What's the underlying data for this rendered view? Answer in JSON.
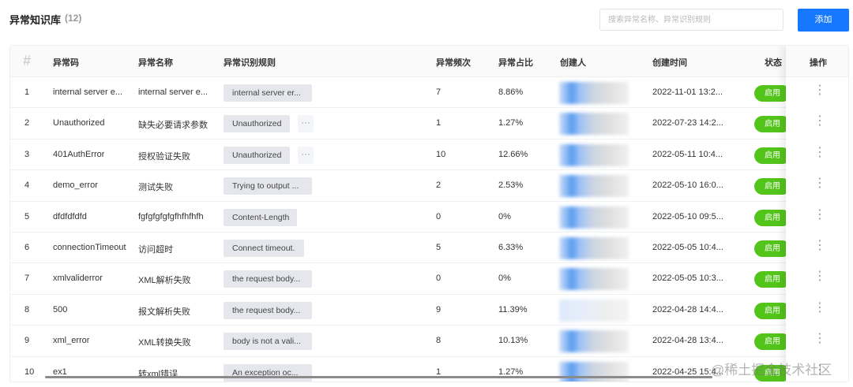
{
  "header": {
    "title": "异常知识库",
    "count": "(12)",
    "search_placeholder": "搜索异常名称、异常识别规则",
    "add_label": "添加"
  },
  "table": {
    "columns": {
      "index": "#",
      "code": "异常码",
      "name": "异常名称",
      "rule": "异常识别规则",
      "freq": "异常频次",
      "ratio": "异常占比",
      "creator": "创建人",
      "created": "创建时间",
      "status": "状态",
      "actions": "操作"
    },
    "rows": [
      {
        "index": "1",
        "code": "internal server e...",
        "name": "internal server e...",
        "rule": "internal server er...",
        "rule_more": false,
        "freq": "7",
        "ratio": "8.86%",
        "created": "2022-11-01 13:2...",
        "status": "启用"
      },
      {
        "index": "2",
        "code": "Unauthorized",
        "name": "缺失必要请求参数",
        "rule": "Unauthorized",
        "rule_more": true,
        "freq": "1",
        "ratio": "1.27%",
        "created": "2022-07-23 14:2...",
        "status": "启用"
      },
      {
        "index": "3",
        "code": "401AuthError",
        "name": "授权验证失败",
        "rule": "Unauthorized",
        "rule_more": true,
        "freq": "10",
        "ratio": "12.66%",
        "created": "2022-05-11 10:4...",
        "status": "启用"
      },
      {
        "index": "4",
        "code": "demo_error",
        "name": "测试失败",
        "rule": "Trying to output ...",
        "rule_more": false,
        "freq": "2",
        "ratio": "2.53%",
        "created": "2022-05-10 16:0...",
        "status": "启用"
      },
      {
        "index": "5",
        "code": "dfdfdfdfd",
        "name": "fgfgfgfgfgfhfhfhfh",
        "rule": "Content-Length",
        "rule_more": false,
        "freq": "0",
        "ratio": "0%",
        "created": "2022-05-10 09:5...",
        "status": "启用"
      },
      {
        "index": "6",
        "code": "connectionTimeout",
        "name": "访问超时",
        "rule": "Connect timeout.",
        "rule_more": false,
        "freq": "5",
        "ratio": "6.33%",
        "created": "2022-05-05 10:4...",
        "status": "启用"
      },
      {
        "index": "7",
        "code": "xmlvaliderror",
        "name": "XML解析失败",
        "rule": "the request body...",
        "rule_more": false,
        "freq": "0",
        "ratio": "0%",
        "created": "2022-05-05 10:3...",
        "status": "启用"
      },
      {
        "index": "8",
        "code": "500",
        "name": "报文解析失败",
        "rule": "the request body...",
        "rule_more": false,
        "freq": "9",
        "ratio": "11.39%",
        "created": "2022-04-28 14:4...",
        "status": "启用"
      },
      {
        "index": "9",
        "code": "xml_error",
        "name": "XML转换失败",
        "rule": "body is not a vali...",
        "rule_more": false,
        "freq": "8",
        "ratio": "10.13%",
        "created": "2022-04-28 13:4...",
        "status": "启用"
      },
      {
        "index": "10",
        "code": "ex1",
        "name": "转xml错误",
        "rule": "An exception oc...",
        "rule_more": false,
        "freq": "1",
        "ratio": "1.27%",
        "created": "2022-04-25 15:4...",
        "status": "启用"
      }
    ],
    "more_label": "···",
    "kebab_label": "⋮"
  },
  "watermark": "@稀土掘金技术社区",
  "colors": {
    "primary": "#1677ff",
    "status_green": "#52c41a",
    "tag_bg": "#e5e7ec",
    "avatar_blue": "#5b9cf0"
  }
}
